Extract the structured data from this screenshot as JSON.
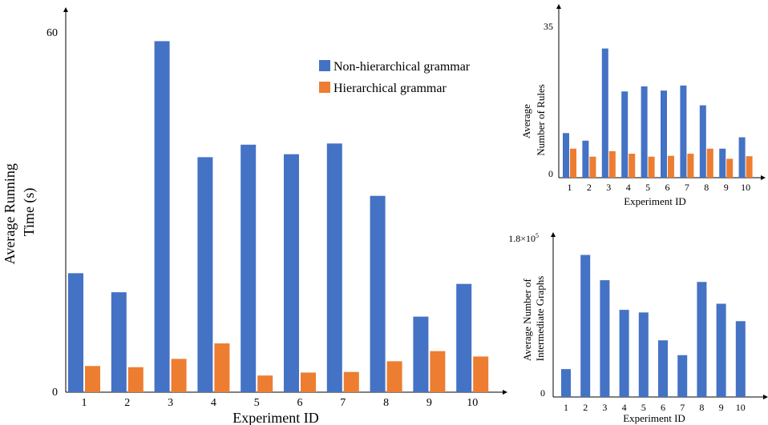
{
  "colors": {
    "blue": "#4472C4",
    "orange": "#ED7D31",
    "axis": "#000000"
  },
  "chart_data": [
    {
      "id": "main",
      "type": "bar",
      "ylabel_lines": [
        "Average Running",
        "Time (s)"
      ],
      "xlabel": "Experiment ID",
      "ylim": [
        0,
        60
      ],
      "yticks": [
        0,
        60
      ],
      "categories": [
        "1",
        "2",
        "3",
        "4",
        "5",
        "6",
        "7",
        "8",
        "9",
        "10"
      ],
      "legend": {
        "placement": "top-center"
      },
      "series": [
        {
          "name": "Non-hierarchical grammar",
          "color": "#4472C4",
          "values": [
            20.0,
            16.8,
            59.0,
            39.5,
            41.6,
            40.0,
            41.8,
            33.0,
            12.7,
            18.2
          ]
        },
        {
          "name": "Hierarchical grammar",
          "color": "#ED7D31",
          "values": [
            4.4,
            4.2,
            5.6,
            8.2,
            2.8,
            3.3,
            3.4,
            5.2,
            6.9,
            6.0
          ]
        }
      ]
    },
    {
      "id": "rules",
      "type": "bar",
      "ylabel_lines": [
        "Average",
        "Number of Rules"
      ],
      "xlabel": "Experiment ID",
      "ylim": [
        0,
        35
      ],
      "yticks": [
        0,
        35
      ],
      "categories": [
        "1",
        "2",
        "3",
        "4",
        "5",
        "6",
        "7",
        "8",
        "9",
        "10"
      ],
      "series": [
        {
          "color": "#4472C4",
          "values": [
            10.6,
            8.8,
            30.7,
            20.5,
            21.7,
            20.7,
            21.9,
            17.2,
            6.9,
            9.6
          ]
        },
        {
          "color": "#ED7D31",
          "values": [
            6.9,
            5.0,
            6.3,
            5.7,
            5.0,
            5.2,
            5.7,
            6.9,
            4.5,
            5.1
          ]
        }
      ]
    },
    {
      "id": "graphs",
      "type": "bar",
      "ylabel_lines": [
        "Average Number of",
        "Intermediate Graphs"
      ],
      "xlabel": "Experiment ID",
      "ylim": [
        0,
        180000
      ],
      "ytick_labels": [
        "0",
        "1.8×10"
      ],
      "ytick_sup": "5",
      "categories": [
        "1",
        "2",
        "3",
        "4",
        "5",
        "6",
        "7",
        "8",
        "9",
        "10"
      ],
      "series": [
        {
          "color": "#4472C4",
          "values": [
            32000,
            163000,
            134000,
            100000,
            97000,
            65000,
            48000,
            132000,
            107000,
            87000
          ]
        }
      ]
    }
  ]
}
